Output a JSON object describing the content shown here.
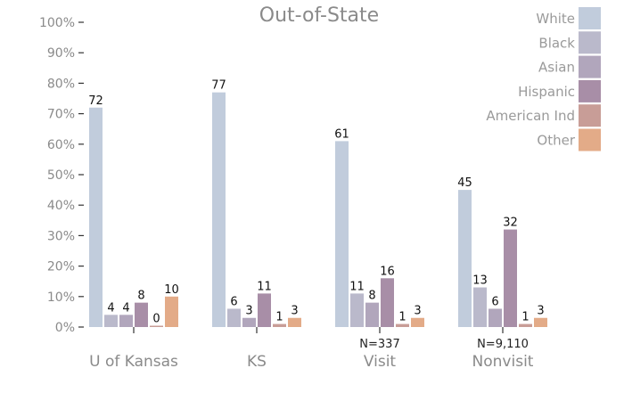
{
  "chart_data": {
    "type": "bar",
    "title": "Out-of-State",
    "categories": [
      "U of Kansas",
      "KS",
      "Visit",
      "Nonvisit"
    ],
    "category_notes": [
      "",
      "",
      "N=337",
      "N=9,110"
    ],
    "series": [
      {
        "name": "White",
        "color": "#c1ccdc",
        "values": [
          72,
          77,
          61,
          45
        ]
      },
      {
        "name": "Black",
        "color": "#bab9cb",
        "values": [
          4,
          6,
          11,
          13
        ]
      },
      {
        "name": "Asian",
        "color": "#b1a6bc",
        "values": [
          4,
          3,
          8,
          6
        ]
      },
      {
        "name": "Hispanic",
        "color": "#a88ea7",
        "values": [
          8,
          11,
          16,
          32
        ]
      },
      {
        "name": "American Ind",
        "color": "#c89d97",
        "values": [
          0,
          1,
          1,
          1
        ]
      },
      {
        "name": "Other",
        "color": "#e3ab88",
        "values": [
          10,
          3,
          3,
          3
        ]
      }
    ],
    "y_ticks": [
      "0%",
      "10%",
      "20%",
      "30%",
      "40%",
      "50%",
      "60%",
      "70%",
      "80%",
      "90%",
      "100%"
    ],
    "ylim": [
      0,
      100
    ],
    "legend_position": "top-right",
    "grid": false
  }
}
